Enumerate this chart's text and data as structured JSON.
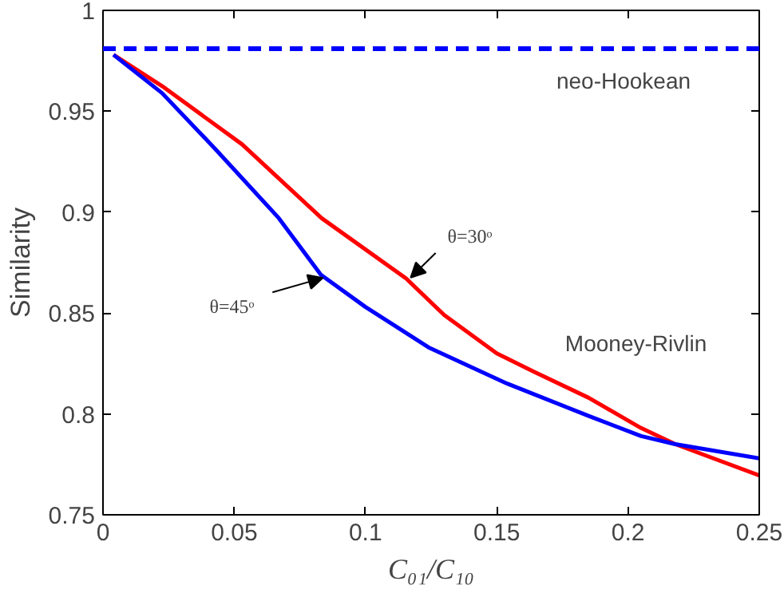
{
  "chart_data": {
    "type": "line",
    "xlabel": "C₀₁/C₁₀",
    "ylabel": "Similarity",
    "xlim": [
      0,
      0.25
    ],
    "ylim": [
      0.75,
      1
    ],
    "xticks": [
      0,
      0.05,
      0.1,
      0.15,
      0.2,
      0.25
    ],
    "yticks": [
      0.75,
      0.8,
      0.85,
      0.9,
      0.95,
      1
    ],
    "grid": false,
    "line_style": "solid",
    "marker": "none",
    "series": [
      {
        "color": "#ff0000",
        "x": [
          0.004,
          0.0225,
          0.053,
          0.0833,
          0.1156,
          0.13,
          0.15,
          0.164,
          0.185,
          0.205,
          0.218,
          0.25
        ],
        "values": [
          0.978,
          0.9625,
          0.9336,
          0.897,
          0.867,
          0.849,
          0.83,
          0.821,
          0.808,
          0.793,
          0.785,
          0.7695
        ]
      },
      {
        "color": "#0000ff",
        "x": [
          0.004,
          0.0225,
          0.043,
          0.067,
          0.083,
          0.1,
          0.124,
          0.154,
          0.185,
          0.205,
          0.218,
          0.25
        ],
        "values": [
          0.978,
          0.959,
          0.931,
          0.897,
          0.869,
          0.853,
          0.833,
          0.815,
          0.799,
          0.789,
          0.785,
          0.778
        ]
      }
    ],
    "ref_lines": [
      {
        "axis": "y",
        "value": 0.981,
        "label": "neo-Hookean",
        "color": "#0000ff",
        "line_style": "dashed"
      }
    ],
    "annotations": [
      {
        "text": "θ=30ᵒ",
        "x": 0.116,
        "y": 0.866
      },
      {
        "text": "θ=45ᵒ",
        "x": 0.085,
        "y": 0.869
      },
      "Mooney-Rivlin"
    ]
  }
}
